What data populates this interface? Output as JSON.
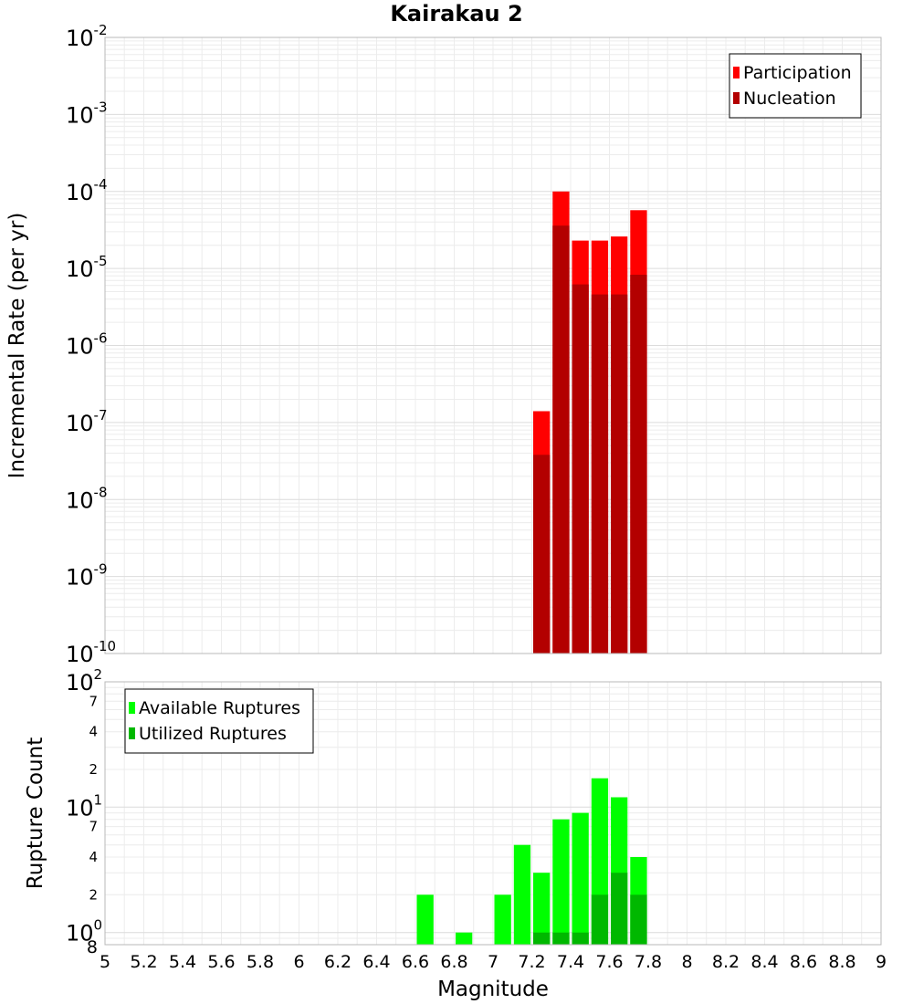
{
  "chart_data": [
    {
      "type": "bar",
      "title": "Kairakau 2",
      "xlabel": "Magnitude",
      "ylabel": "Incremental Rate (per yr)",
      "yscale": "log",
      "ylim": [
        1e-10,
        0.01
      ],
      "xlim": [
        5,
        9
      ],
      "x_ticks": [
        "5",
        "5.2",
        "5.4",
        "5.6",
        "5.8",
        "6",
        "6.2",
        "6.4",
        "6.6",
        "6.8",
        "7",
        "7.2",
        "7.4",
        "7.6",
        "7.8",
        "8",
        "8.2",
        "8.4",
        "8.6",
        "8.8",
        "9"
      ],
      "y_ticks": [
        {
          "base": "10",
          "exp": "-2",
          "value": 0.01
        },
        {
          "base": "10",
          "exp": "-3",
          "value": 0.001
        },
        {
          "base": "10",
          "exp": "-4",
          "value": 0.0001
        },
        {
          "base": "10",
          "exp": "-5",
          "value": 1e-05
        },
        {
          "base": "10",
          "exp": "-6",
          "value": 1e-06
        },
        {
          "base": "10",
          "exp": "-7",
          "value": 1e-07
        },
        {
          "base": "10",
          "exp": "-8",
          "value": 1e-08
        },
        {
          "base": "10",
          "exp": "-9",
          "value": 1e-09
        },
        {
          "base": "10",
          "exp": "-10",
          "value": 1e-10
        }
      ],
      "legend_position": "top-right",
      "categories": [
        7.25,
        7.35,
        7.45,
        7.55,
        7.65,
        7.75
      ],
      "series": [
        {
          "name": "Participation",
          "color": "#ff0000",
          "values": [
            1.4e-07,
            0.0001,
            2.3e-05,
            2.3e-05,
            2.6e-05,
            5.7e-05
          ]
        },
        {
          "name": "Nucleation",
          "color": "#b30000",
          "values": [
            3.8e-08,
            3.6e-05,
            6.2e-06,
            4.6e-06,
            4.6e-06,
            8.3e-06
          ]
        }
      ]
    },
    {
      "type": "bar",
      "title": "",
      "xlabel": "Magnitude",
      "ylabel": "Rupture Count",
      "yscale": "log",
      "ylim": [
        0.8,
        100
      ],
      "xlim": [
        5,
        9
      ],
      "y_ticks": [
        {
          "base": "10",
          "exp": "2",
          "value": 100
        },
        {
          "base": "10",
          "exp": "1",
          "value": 10
        },
        {
          "base": "10",
          "exp": "0",
          "value": 1
        }
      ],
      "y_minor_ticks": [
        {
          "label": "7",
          "value": 70
        },
        {
          "label": "4",
          "value": 40
        },
        {
          "label": "2",
          "value": 20
        },
        {
          "label": "7",
          "value": 7
        },
        {
          "label": "4",
          "value": 4
        },
        {
          "label": "2",
          "value": 2
        },
        {
          "label": "8",
          "value": 0.8
        }
      ],
      "legend_position": "top-left",
      "series": [
        {
          "name": "Available Ruptures",
          "color": "#00ff00",
          "x": [
            6.65,
            6.85,
            7.05,
            7.15,
            7.25,
            7.35,
            7.45,
            7.55,
            7.65,
            7.75
          ],
          "values": [
            2,
            1,
            2,
            5,
            3,
            8,
            9,
            17,
            12,
            4
          ]
        },
        {
          "name": "Utilized Ruptures",
          "color": "#00b800",
          "x": [
            7.25,
            7.35,
            7.45,
            7.55,
            7.65,
            7.75
          ],
          "values": [
            1,
            1,
            1,
            2,
            3,
            2
          ]
        }
      ]
    }
  ]
}
